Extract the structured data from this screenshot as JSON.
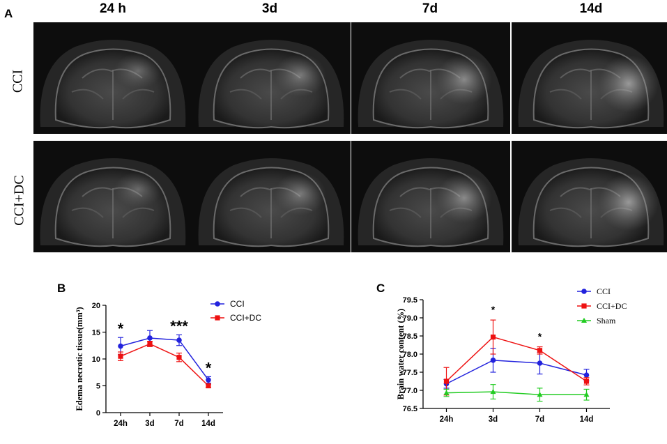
{
  "panel_a": {
    "letter": "A",
    "timepoints": [
      "24 h",
      "3d",
      "7d",
      "14d"
    ],
    "rows": [
      "CCI",
      "CCI+DC"
    ]
  },
  "chart_data": [
    {
      "panel": "B",
      "type": "line",
      "title": "",
      "xlabel": "",
      "ylabel": "Edema necrotic tissue(mm³)",
      "categories": [
        "24h",
        "3d",
        "7d",
        "14d"
      ],
      "ylim": [
        0,
        20
      ],
      "yticks": [
        "0",
        "5",
        "10",
        "15",
        "20"
      ],
      "series": [
        {
          "name": "CCI",
          "color": "#2222dd",
          "marker": "circle",
          "values": [
            12.4,
            13.9,
            13.5,
            6.1
          ],
          "errors": [
            1.6,
            1.4,
            1.0,
            0.6
          ]
        },
        {
          "name": "CCI+DC",
          "color": "#ee1111",
          "marker": "square",
          "values": [
            10.5,
            12.8,
            10.3,
            5.0
          ],
          "errors": [
            0.8,
            0.5,
            0.8,
            0.3
          ]
        }
      ],
      "significance": [
        "*",
        "",
        "***",
        "*"
      ]
    },
    {
      "panel": "C",
      "type": "line",
      "title": "",
      "xlabel": "",
      "ylabel": "Brain water content (%)",
      "categories": [
        "24h",
        "3d",
        "7d",
        "14d"
      ],
      "ylim": [
        76.5,
        79.5
      ],
      "yticks": [
        "76.5",
        "77.0",
        "77.5",
        "78.0",
        "78.5",
        "79.0",
        "79.5"
      ],
      "series": [
        {
          "name": "CCI",
          "color": "#2222dd",
          "marker": "circle",
          "values": [
            77.18,
            77.83,
            77.75,
            77.42
          ],
          "errors": [
            0.12,
            0.33,
            0.3,
            0.16
          ]
        },
        {
          "name": "CCI+DC",
          "color": "#ee1111",
          "marker": "square",
          "values": [
            77.25,
            78.47,
            78.1,
            77.25
          ],
          "errors": [
            0.38,
            0.47,
            0.1,
            0.1
          ]
        },
        {
          "name": "Sham",
          "color": "#22cc22",
          "marker": "triangle",
          "values": [
            76.93,
            76.96,
            76.88,
            76.88
          ],
          "errors": [
            0.1,
            0.2,
            0.18,
            0.15
          ]
        }
      ],
      "significance": [
        "",
        "*",
        "*",
        ""
      ]
    }
  ]
}
